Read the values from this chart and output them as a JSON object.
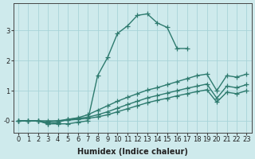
{
  "xlabel": "Humidex (Indice chaleur)",
  "ylabel": "",
  "background_color": "#ceeaec",
  "grid_color": "#a8d4d8",
  "line_color": "#2d7a6e",
  "xlim": [
    -0.5,
    23.5
  ],
  "ylim": [
    -0.4,
    3.9
  ],
  "yticks": [
    0,
    1,
    2,
    3
  ],
  "ytick_labels": [
    "-0",
    "1",
    "2",
    "3"
  ],
  "xticks": [
    0,
    1,
    2,
    3,
    4,
    5,
    6,
    7,
    8,
    9,
    10,
    11,
    12,
    13,
    14,
    15,
    16,
    17,
    18,
    19,
    20,
    21,
    22,
    23
  ],
  "series": [
    {
      "x": [
        0,
        1,
        2,
        3,
        4,
        5,
        6,
        7,
        8,
        9,
        10,
        11,
        12,
        13,
        14,
        15,
        16,
        17
      ],
      "y": [
        0.0,
        0.0,
        0.0,
        -0.1,
        -0.1,
        -0.1,
        -0.05,
        0.0,
        1.5,
        2.1,
        2.9,
        3.15,
        3.5,
        3.55,
        3.25,
        3.1,
        2.4,
        2.4
      ]
    },
    {
      "x": [
        0,
        1,
        2,
        3,
        4,
        5,
        6,
        7,
        8,
        9,
        10,
        11,
        12,
        13,
        14,
        15,
        16,
        17,
        18,
        19,
        20,
        21,
        22,
        23
      ],
      "y": [
        0.0,
        0.0,
        0.0,
        -0.1,
        -0.05,
        0.05,
        0.1,
        0.2,
        0.35,
        0.5,
        0.65,
        0.78,
        0.9,
        1.02,
        1.1,
        1.2,
        1.3,
        1.4,
        1.5,
        1.55,
        1.0,
        1.5,
        1.45,
        1.55
      ]
    },
    {
      "x": [
        0,
        1,
        2,
        3,
        4,
        5,
        6,
        7,
        8,
        9,
        10,
        11,
        12,
        13,
        14,
        15,
        16,
        17,
        18,
        19,
        20,
        21,
        22,
        23
      ],
      "y": [
        0.0,
        0.0,
        0.0,
        -0.05,
        0.0,
        0.05,
        0.08,
        0.12,
        0.2,
        0.3,
        0.42,
        0.54,
        0.65,
        0.76,
        0.84,
        0.92,
        1.0,
        1.08,
        1.15,
        1.22,
        0.75,
        1.15,
        1.1,
        1.2
      ]
    },
    {
      "x": [
        0,
        1,
        2,
        3,
        4,
        5,
        6,
        7,
        8,
        9,
        10,
        11,
        12,
        13,
        14,
        15,
        16,
        17,
        18,
        19,
        20,
        21,
        22,
        23
      ],
      "y": [
        0.0,
        0.0,
        0.0,
        0.0,
        0.0,
        0.02,
        0.05,
        0.08,
        0.13,
        0.2,
        0.3,
        0.4,
        0.5,
        0.6,
        0.68,
        0.75,
        0.83,
        0.9,
        0.97,
        1.03,
        0.62,
        0.95,
        0.9,
        1.0
      ]
    }
  ],
  "marker": "+",
  "markersize": 4,
  "linewidth": 1.0,
  "fontsize_label": 7,
  "fontsize_tick": 6
}
